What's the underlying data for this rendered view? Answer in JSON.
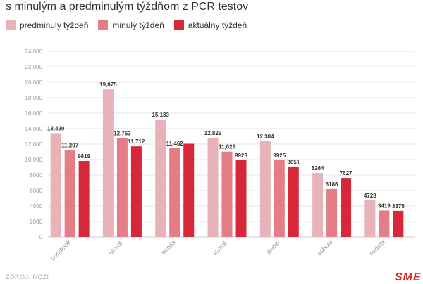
{
  "title": "s minulým a predminulým týždňom z PCR testov",
  "source": "ZDROJ: NCZI",
  "logo_text": "SME",
  "chart_data": {
    "type": "bar",
    "categories": [
      "pondelok",
      "utorok",
      "streda",
      "štvrtok",
      "piatok",
      "sobota",
      "nedeľa"
    ],
    "series": [
      {
        "name": "predminulý týždeň",
        "color": "#e8b3b8",
        "values": [
          13420,
          19075,
          15183,
          12829,
          12384,
          8264,
          4728
        ],
        "labels": [
          "13,420",
          "19,075",
          "15,183",
          "12,829",
          "12,384",
          "8264",
          "4728"
        ]
      },
      {
        "name": "minulý týždeň",
        "color": "#e47d86",
        "values": [
          11207,
          12763,
          11462,
          11029,
          9925,
          6186,
          3419
        ],
        "labels": [
          "11,207",
          "12,763",
          "11,462",
          "11,029",
          "9925",
          "6186",
          "3419"
        ]
      },
      {
        "name": "aktuálny týždeň",
        "color": "#d7283a",
        "values": [
          9819,
          11712,
          12050,
          9923,
          9051,
          7627,
          3375
        ],
        "labels": [
          "9819",
          "11,712",
          "",
          "9923",
          "9051",
          "7627",
          "3375"
        ]
      }
    ],
    "y_ticks": [
      "0",
      "2000",
      "4000",
      "6000",
      "8000",
      "10,000",
      "12,000",
      "14,000",
      "16,000",
      "18,000",
      "20,000",
      "22,000",
      "24,000"
    ],
    "ylim": [
      0,
      24000
    ],
    "grid": true,
    "legend_position": "top-left"
  }
}
